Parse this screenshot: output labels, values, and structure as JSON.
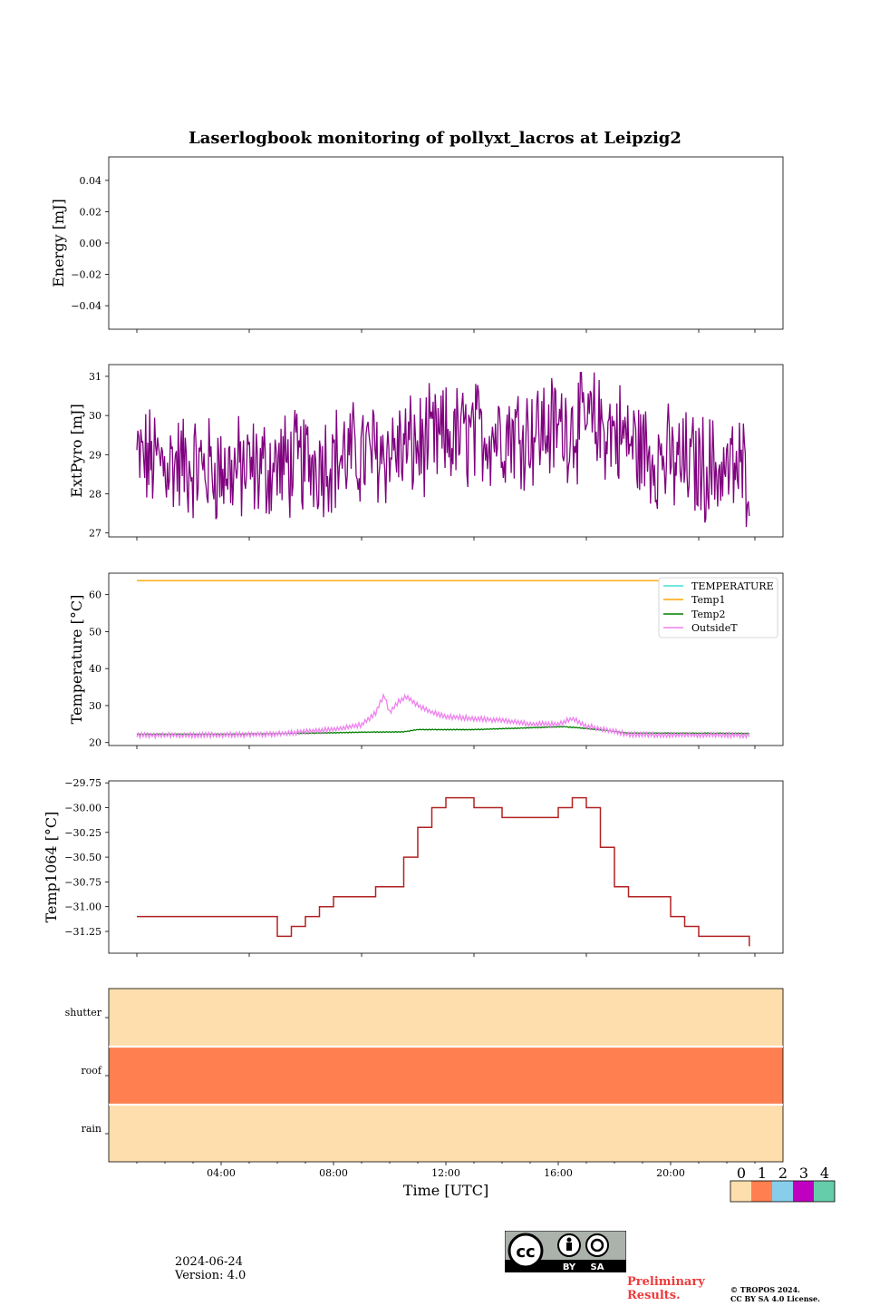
{
  "title": "Laserlogbook monitoring of pollyxt_lacros at Leipzig2",
  "colors": {
    "extpyro": "#800080",
    "TEMPERATURE": "#40e0d0",
    "Temp1": "#ffa500",
    "Temp2": "#008000",
    "OutsideT": "#ee82ee",
    "temp1064": "#b22222",
    "flag_0": "#ffdead",
    "flag_1": "#ff7f50",
    "flag_2": "#87ceeb",
    "flag_3": "#c000c0",
    "flag_4": "#66cdaa"
  },
  "chart_data": [
    {
      "type": "line",
      "ylabel": "Energy [mJ]",
      "ylim": [
        -0.055,
        0.055
      ],
      "yticks": [
        "0.04",
        "0.02",
        "0.00",
        "−0.02",
        "−0.04"
      ],
      "series": []
    },
    {
      "type": "line",
      "ylabel": "ExtPyro [mJ]",
      "ylim": [
        26.9,
        31.3
      ],
      "yticks": [
        "31",
        "30",
        "29",
        "28",
        "27"
      ],
      "x_range_hours": [
        1.0,
        22.8
      ],
      "series": [
        {
          "color": "#800080",
          "x_hours": [
            1.0,
            2.0,
            3.0,
            4.0,
            5.0,
            6.0,
            7.0,
            8.0,
            9.0,
            10.0,
            11.0,
            12.0,
            13.0,
            14.0,
            15.0,
            16.0,
            17.0,
            18.0,
            19.0,
            20.0,
            21.0,
            22.0,
            22.8
          ],
          "mean": [
            28.9,
            28.8,
            28.7,
            28.6,
            28.6,
            28.7,
            28.8,
            28.9,
            29.0,
            29.1,
            29.2,
            29.4,
            29.5,
            29.6,
            29.6,
            29.7,
            29.8,
            29.6,
            29.1,
            28.8,
            28.7,
            28.6,
            28.6
          ],
          "min": 27.1,
          "max": 31.1
        }
      ]
    },
    {
      "type": "line",
      "ylabel": "Temperature [°C]",
      "ylim": [
        19.2,
        65.8
      ],
      "yticks": [
        "60",
        "50",
        "40",
        "30",
        "20"
      ],
      "legend_position": "upper right",
      "series": [
        {
          "name": "TEMPERATURE",
          "color": "#40e0d0",
          "x_hours": [],
          "values": []
        },
        {
          "name": "Temp1",
          "color": "#ffa500",
          "x_hours": [
            1.0,
            22.8
          ],
          "values": [
            63.8,
            63.8
          ]
        },
        {
          "name": "Temp2",
          "color": "#008000",
          "x_hours": [
            1.0,
            4.0,
            7.0,
            9.0,
            10.5,
            11.0,
            13.0,
            15.0,
            16.2,
            16.7,
            17.5,
            18.5,
            22.8
          ],
          "values": [
            22.3,
            22.3,
            22.5,
            22.8,
            22.9,
            23.5,
            23.5,
            24.0,
            24.3,
            24.0,
            23.4,
            22.6,
            22.5
          ]
        },
        {
          "name": "OutsideT",
          "color": "#ee82ee",
          "x_hours": [
            1.0,
            4.0,
            6.0,
            7.0,
            8.0,
            9.0,
            9.5,
            9.8,
            10.0,
            10.3,
            10.6,
            11.0,
            11.5,
            12.0,
            13.0,
            14.0,
            15.0,
            16.0,
            16.5,
            17.0,
            18.0,
            18.5,
            20.0,
            22.8
          ],
          "values": [
            22.0,
            22.0,
            22.3,
            23.0,
            23.6,
            24.8,
            28.0,
            33.0,
            28.0,
            31.0,
            32.5,
            30.0,
            28.2,
            27.0,
            26.5,
            26.0,
            25.0,
            25.0,
            26.5,
            24.5,
            23.0,
            22.2,
            22.0,
            22.0
          ]
        }
      ]
    },
    {
      "type": "line",
      "ylabel": "Temp1064 [°C]",
      "ylim": [
        -31.47,
        -29.73
      ],
      "yticks": [
        "−29.75",
        "−30.00",
        "−30.25",
        "−30.50",
        "−30.75",
        "−31.00",
        "−31.25"
      ],
      "series": [
        {
          "color": "#b22222",
          "x_hours": [
            1.0,
            2.0,
            3.0,
            4.0,
            5.0,
            6.0,
            6.5,
            7.0,
            7.5,
            8.0,
            8.5,
            9.0,
            9.5,
            10.0,
            10.5,
            11.0,
            11.5,
            12.0,
            13.0,
            14.0,
            15.0,
            16.0,
            16.5,
            17.0,
            17.5,
            18.0,
            18.5,
            19.0,
            19.5,
            20.0,
            20.5,
            21.0,
            21.5,
            22.0,
            22.8
          ],
          "values": [
            -31.1,
            -31.1,
            -31.1,
            -31.1,
            -31.1,
            -31.3,
            -31.2,
            -31.1,
            -31.0,
            -30.9,
            -30.9,
            -30.9,
            -30.8,
            -30.8,
            -30.5,
            -30.2,
            -30.0,
            -29.9,
            -30.0,
            -30.1,
            -30.1,
            -30.0,
            -29.9,
            -30.0,
            -30.4,
            -30.8,
            -30.9,
            -30.9,
            -30.9,
            -31.1,
            -31.2,
            -31.3,
            -31.3,
            -31.3,
            -31.4
          ]
        }
      ]
    },
    {
      "type": "heatmap",
      "rows": [
        "shutter",
        "roof",
        "rain"
      ],
      "values": [
        0,
        1,
        0
      ],
      "xlabel": "Time [UTC]",
      "xticks": [
        "04:00",
        "08:00",
        "12:00",
        "16:00",
        "20:00"
      ],
      "x_range_hours": [
        0,
        24
      ],
      "colorbar_labels": [
        "0",
        "1",
        "2",
        "3",
        "4"
      ]
    }
  ],
  "footer": {
    "date": "2024-06-24",
    "version": "Version: 4.0",
    "preliminary_line1": "Preliminary",
    "preliminary_line2": "Results.",
    "copyright_line1": "© TROPOS 2024.",
    "copyright_line2": "CC BY SA 4.0 License.",
    "cc_by": "BY",
    "cc_sa": "SA"
  }
}
